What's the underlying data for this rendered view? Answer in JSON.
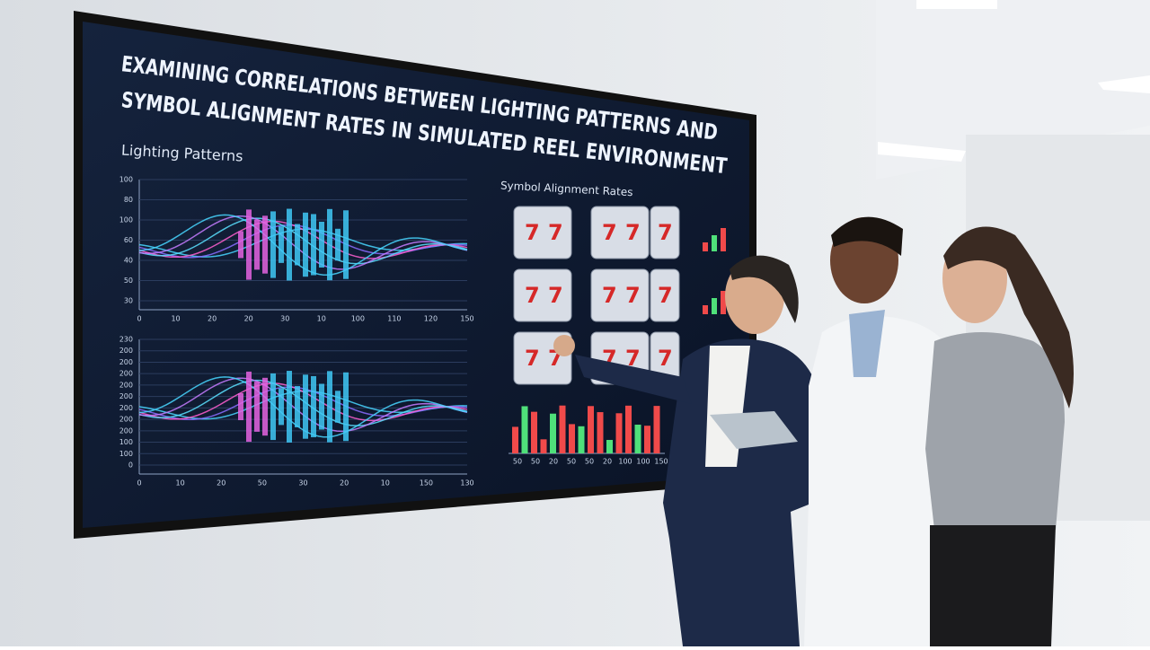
{
  "screen": {
    "title_lines": [
      "EXAMINING CORRELATIONS BETWEEN LIGHTING PATTERNS AND",
      "SYMBOL   ALIGNMENT RATES IN SIMULATED REEL ENVIRONMENT"
    ],
    "lighting": {
      "title": "Lighting Patterns",
      "top": {
        "y_ticks": [
          "100",
          "80",
          "100",
          "60",
          "40",
          "50",
          "30"
        ],
        "x_ticks": [
          "0",
          "10",
          "20",
          "20",
          "30",
          "10",
          "100",
          "110",
          "120",
          "150"
        ]
      },
      "bottom": {
        "y_ticks": [
          "230",
          "200",
          "200",
          "200",
          "200",
          "200",
          "200",
          "200",
          "200",
          "100",
          "100",
          "0"
        ],
        "x_ticks": [
          "0",
          "10",
          "20",
          "50",
          "30",
          "20",
          "10",
          "150",
          "130"
        ]
      }
    },
    "alignment": {
      "title": "Symbol Alignment Rates",
      "reel_symbol": "7",
      "x_ticks": [
        "50",
        "50",
        "20",
        "50",
        "50",
        "20",
        "100",
        "100",
        "150"
      ]
    }
  }
}
